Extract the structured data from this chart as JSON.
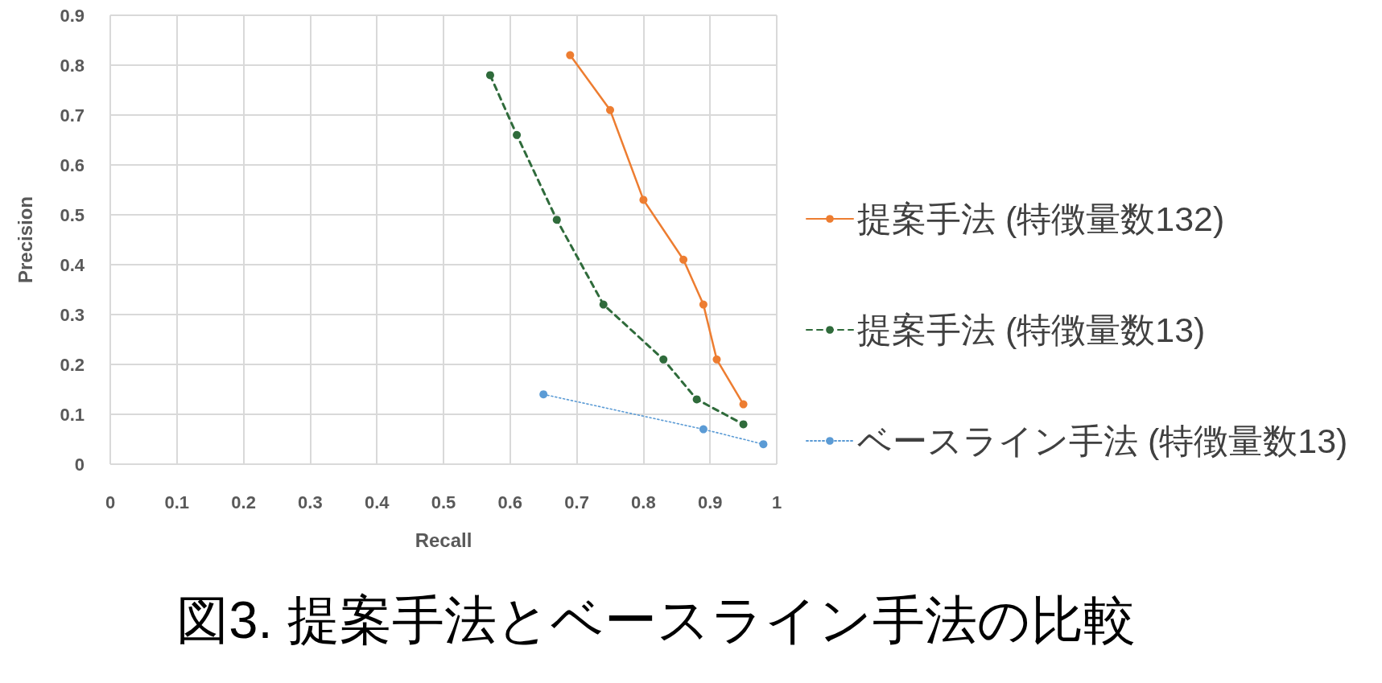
{
  "chart_data": {
    "type": "line",
    "title": "図3. 提案手法とベースライン手法の比較",
    "xlabel": "Recall",
    "ylabel": "Precision",
    "xlim": [
      0,
      1
    ],
    "xticks": [
      0,
      0.1,
      0.2,
      0.3,
      0.4,
      0.5,
      0.6,
      0.7,
      0.8,
      0.9,
      1
    ],
    "ylim": [
      0,
      0.9
    ],
    "yticks": [
      0,
      0.1,
      0.2,
      0.3,
      0.4,
      0.5,
      0.6,
      0.7,
      0.8,
      0.9
    ],
    "grid": true,
    "legend": "right",
    "marker": "circle",
    "series": [
      {
        "name": "提案手法 (特徴量数132)",
        "color": "#ed7d31",
        "line_style": "solid",
        "x": [
          0.69,
          0.75,
          0.8,
          0.86,
          0.89,
          0.91,
          0.95
        ],
        "values": [
          0.82,
          0.71,
          0.53,
          0.41,
          0.32,
          0.21,
          0.12
        ]
      },
      {
        "name": "提案手法 (特徴量数13)",
        "color": "#2f6b3b",
        "line_style": "dashed",
        "x": [
          0.57,
          0.61,
          0.67,
          0.74,
          0.83,
          0.88,
          0.95
        ],
        "values": [
          0.78,
          0.66,
          0.49,
          0.32,
          0.21,
          0.13,
          0.08
        ]
      },
      {
        "name": "ベースライン手法 (特徴量数13)",
        "color": "#5b9bd5",
        "line_style": "dotted",
        "x": [
          0.65,
          0.89,
          0.98
        ],
        "values": [
          0.14,
          0.07,
          0.04
        ]
      }
    ]
  }
}
